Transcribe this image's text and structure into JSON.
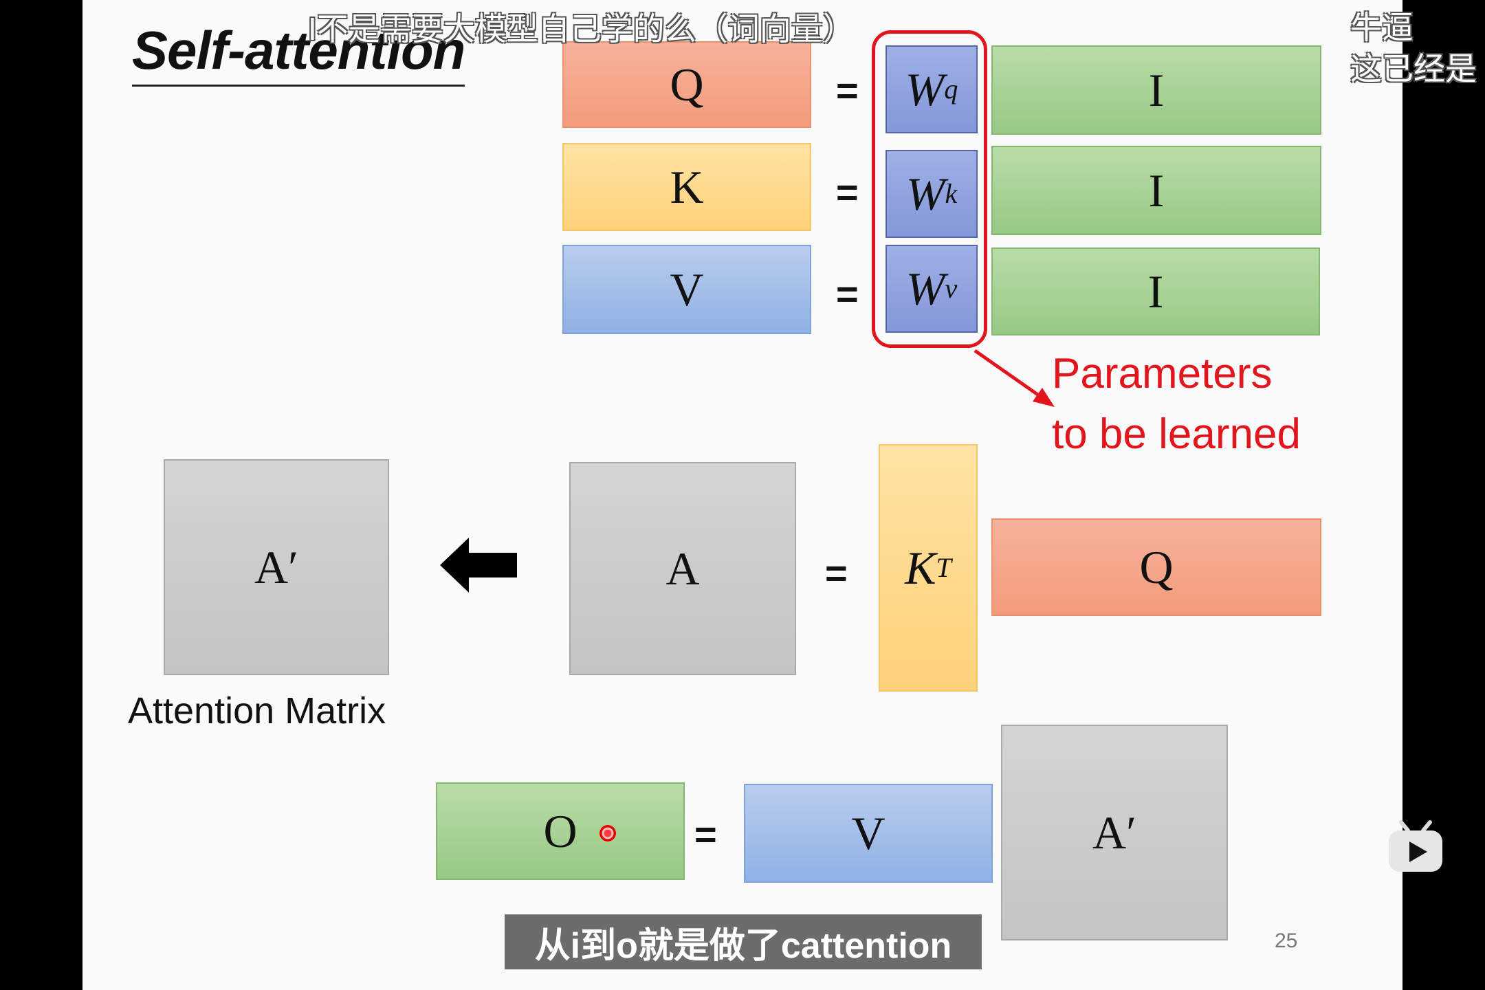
{
  "slide": {
    "title": "Self-attention",
    "page_number": "25",
    "parameters_label": "Parameters\nto be learned",
    "attention_matrix_label": "Attention Matrix",
    "equals": "=",
    "rows": [
      {
        "lhs": "Q",
        "weight": "W",
        "weight_sup": "q",
        "rhs": "I"
      },
      {
        "lhs": "K",
        "weight": "W",
        "weight_sup": "k",
        "rhs": "I"
      },
      {
        "lhs": "V",
        "weight": "W",
        "weight_sup": "v",
        "rhs": "I"
      }
    ],
    "attention_eq": {
      "normalized": "A′",
      "raw": "A",
      "kt_base": "K",
      "kt_sup": "T",
      "q": "Q"
    },
    "output_eq": {
      "o": "O",
      "v": "V",
      "a_prime": "A′"
    }
  },
  "overlay": {
    "danmaku_top": "I不是需要大模型自己学的么（词向量）",
    "danmaku_right_1": "牛逼",
    "danmaku_right_2": "这已经是",
    "subtitle": "从i到o就是做了cattention"
  },
  "colors": {
    "q": "#f39b7c",
    "k": "#fdd17a",
    "v": "#8fb1e4",
    "i": "#97c985",
    "w": "#8497d8",
    "matrix": "#c8c8c8",
    "accent": "#e2141c"
  },
  "icons": {
    "arrow": "left-arrow-icon",
    "logo": "bilibili-tv-icon"
  }
}
